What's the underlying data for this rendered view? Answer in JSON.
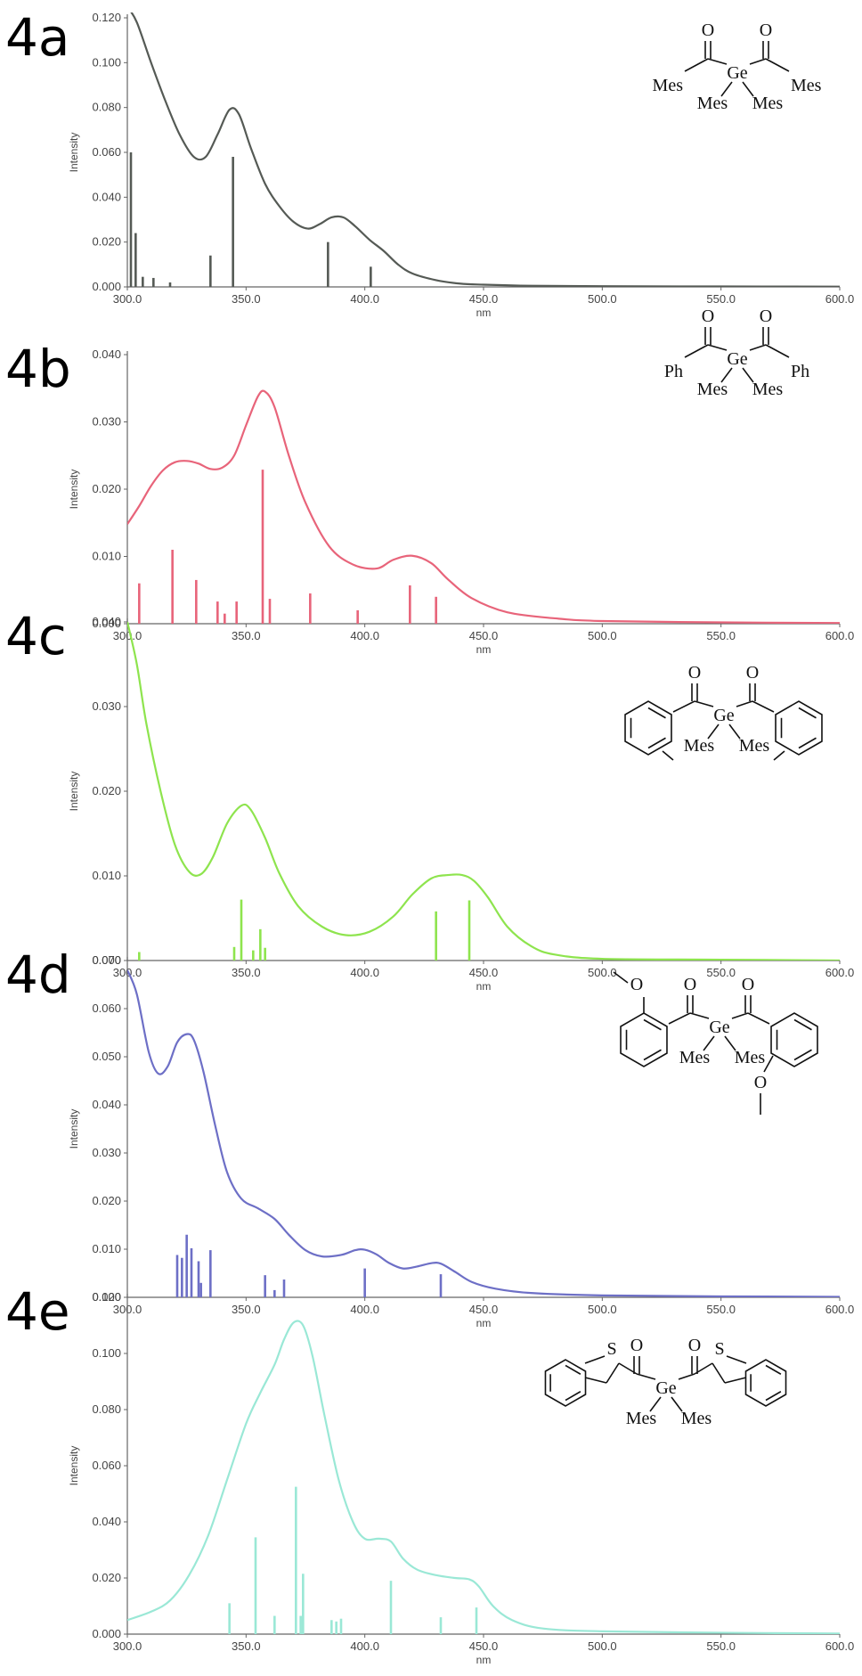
{
  "chart_data": [
    {
      "type": "line",
      "panel_label": "4a",
      "xlabel": "nm",
      "ylabel": "Intensity",
      "xlim": [
        300,
        600
      ],
      "ylim": [
        0,
        0.12
      ],
      "x_ticks": [
        "300.0",
        "350.0",
        "400.0",
        "450.0",
        "500.0",
        "550.0",
        "600.0"
      ],
      "y_ticks": [
        "0.000",
        "0.020",
        "0.040",
        "0.060",
        "0.080",
        "0.100",
        "0.120"
      ],
      "color": "#555a55",
      "series": [
        {
          "x": [
            300,
            304,
            310,
            316,
            322,
            328,
            333,
            338,
            343,
            347,
            352,
            358,
            364,
            370,
            376,
            381,
            386,
            391,
            396,
            402,
            408,
            414,
            420,
            430,
            440,
            450,
            470,
            500,
            550,
            600
          ],
          "y": [
            0.125,
            0.118,
            0.1,
            0.083,
            0.068,
            0.058,
            0.058,
            0.068,
            0.079,
            0.077,
            0.062,
            0.046,
            0.036,
            0.029,
            0.026,
            0.028,
            0.031,
            0.031,
            0.027,
            0.021,
            0.016,
            0.01,
            0.006,
            0.003,
            0.0015,
            0.001,
            0.0005,
            0.0003,
            0.0002,
            0.0001
          ]
        }
      ],
      "sticks": {
        "x": [
          301.5,
          303.5,
          306.5,
          311,
          318,
          335,
          344.5,
          384.5,
          402.5
        ],
        "y": [
          0.06,
          0.024,
          0.0045,
          0.004,
          0.002,
          0.014,
          0.058,
          0.02,
          0.009
        ]
      },
      "structure": {
        "R": [
          "Mes",
          "Mes"
        ],
        "S": [
          "Mes",
          "Mes"
        ],
        "O": "O",
        "Ge": "Ge"
      }
    },
    {
      "type": "line",
      "panel_label": "4b",
      "xlabel": "nm",
      "ylabel": "Intensity",
      "xlim": [
        300,
        600
      ],
      "ylim": [
        0,
        0.04
      ],
      "x_ticks": [
        "300.0",
        "350.0",
        "400.0",
        "450.0",
        "500.0",
        "550.0",
        "600.0"
      ],
      "y_ticks": [
        "0.000",
        "0.010",
        "0.020",
        "0.030",
        "0.040"
      ],
      "color": "#e8647a",
      "series": [
        {
          "x": [
            300,
            305,
            310,
            315,
            320,
            325,
            330,
            335,
            340,
            345,
            350,
            355,
            358,
            362,
            368,
            375,
            385,
            395,
            405,
            412,
            420,
            428,
            435,
            445,
            460,
            480,
            500,
            550,
            600
          ],
          "y": [
            0.0148,
            0.0175,
            0.0205,
            0.0228,
            0.024,
            0.0242,
            0.0238,
            0.023,
            0.0232,
            0.025,
            0.0295,
            0.0338,
            0.0345,
            0.0322,
            0.025,
            0.018,
            0.0115,
            0.0088,
            0.0082,
            0.0095,
            0.0101,
            0.009,
            0.0066,
            0.0038,
            0.0017,
            0.0008,
            0.0004,
            0.0002,
            0.0001
          ]
        }
      ],
      "sticks": {
        "x": [
          305,
          319,
          329,
          338,
          341,
          346,
          357,
          360,
          377,
          397,
          419,
          430
        ],
        "y": [
          0.006,
          0.011,
          0.0065,
          0.0033,
          0.0015,
          0.0033,
          0.0229,
          0.0037,
          0.0045,
          0.002,
          0.0057,
          0.004
        ]
      },
      "structure": {
        "R": [
          "Ph",
          "Ph"
        ],
        "S": [
          "Mes",
          "Mes"
        ],
        "O": "O",
        "Ge": "Ge"
      }
    },
    {
      "type": "line",
      "panel_label": "4c",
      "xlabel": "nm",
      "ylabel": "Intensity",
      "xlim": [
        300,
        600
      ],
      "ylim": [
        0,
        0.04
      ],
      "x_ticks": [
        "300.0",
        "350.0",
        "400.0",
        "450.0",
        "500.0",
        "550.0",
        "600.0"
      ],
      "y_ticks": [
        "0.000",
        "0.010",
        "0.020",
        "0.030",
        "0.040"
      ],
      "color": "#8ee44e",
      "series": [
        {
          "x": [
            300,
            304,
            308,
            314,
            320,
            326,
            331,
            336,
            342,
            348,
            352,
            358,
            364,
            372,
            382,
            392,
            402,
            412,
            420,
            428,
            435,
            441,
            446,
            452,
            460,
            470,
            480,
            500,
            550,
            600
          ],
          "y": [
            0.04,
            0.035,
            0.028,
            0.02,
            0.0137,
            0.0105,
            0.0102,
            0.0122,
            0.0162,
            0.0183,
            0.0178,
            0.0145,
            0.0103,
            0.0064,
            0.004,
            0.003,
            0.0034,
            0.0052,
            0.0078,
            0.0097,
            0.0101,
            0.0101,
            0.0094,
            0.0074,
            0.004,
            0.0017,
            0.0007,
            0.0002,
            0.0001,
            0.0
          ]
        }
      ],
      "sticks": {
        "x": [
          305,
          345,
          348,
          353,
          356,
          358,
          430,
          444
        ],
        "y": [
          0.001,
          0.0016,
          0.0072,
          0.0012,
          0.0037,
          0.0015,
          0.0058,
          0.0071
        ]
      },
      "structure": {
        "R": [
          "",
          ""
        ],
        "S": [
          "Mes",
          "Mes"
        ],
        "O": "O",
        "Ge": "Ge"
      }
    },
    {
      "type": "line",
      "panel_label": "4d",
      "xlabel": "nm",
      "ylabel": "Intensity",
      "xlim": [
        300,
        600
      ],
      "ylim": [
        0,
        0.07
      ],
      "x_ticks": [
        "300.0",
        "350.0",
        "400.0",
        "450.0",
        "500.0",
        "550.0",
        "600.0"
      ],
      "y_ticks": [
        "0.000",
        "0.010",
        "0.020",
        "0.030",
        "0.040",
        "0.050",
        "0.060",
        "0.070"
      ],
      "color": "#6d6fc6",
      "series": [
        {
          "x": [
            300,
            304,
            309,
            313,
            317,
            321,
            325,
            328,
            332,
            337,
            342,
            348,
            355,
            362,
            368,
            375,
            382,
            390,
            396,
            400,
            405,
            410,
            416,
            422,
            428,
            432,
            438,
            445,
            455,
            470,
            500,
            550,
            600
          ],
          "y": [
            0.068,
            0.063,
            0.051,
            0.0465,
            0.048,
            0.053,
            0.0547,
            0.0535,
            0.047,
            0.0357,
            0.026,
            0.0205,
            0.0185,
            0.0163,
            0.013,
            0.0098,
            0.0085,
            0.0088,
            0.0098,
            0.0099,
            0.0089,
            0.0072,
            0.006,
            0.0064,
            0.0071,
            0.007,
            0.0053,
            0.0032,
            0.0018,
            0.0009,
            0.0004,
            0.0002,
            0.0001
          ]
        }
      ],
      "sticks": {
        "x": [
          321,
          323,
          325,
          327,
          330,
          331,
          335,
          358,
          362,
          366,
          400,
          432
        ],
        "y": [
          0.0088,
          0.0082,
          0.013,
          0.0102,
          0.0075,
          0.003,
          0.0098,
          0.0046,
          0.0015,
          0.0037,
          0.006,
          0.0048
        ]
      },
      "structure": {
        "R": [
          "",
          ""
        ],
        "S": [
          "Mes",
          "Mes"
        ],
        "O": "O",
        "Ge": "Ge"
      }
    },
    {
      "type": "line",
      "panel_label": "4e",
      "xlabel": "nm",
      "ylabel": "Intensity",
      "xlim": [
        300,
        600
      ],
      "ylim": [
        0,
        0.12
      ],
      "x_ticks": [
        "300.0",
        "350.0",
        "400.0",
        "450.0",
        "500.0",
        "550.0",
        "600.0"
      ],
      "y_ticks": [
        "0.000",
        "0.020",
        "0.040",
        "0.060",
        "0.080",
        "0.100",
        "0.120"
      ],
      "color": "#9ae8d6",
      "series": [
        {
          "x": [
            300,
            310,
            318,
            326,
            334,
            342,
            350,
            356,
            362,
            366,
            370,
            374,
            378,
            383,
            389,
            395,
            400,
            406,
            411,
            416,
            422,
            430,
            438,
            444,
            448,
            454,
            462,
            475,
            500,
            550,
            600
          ],
          "y": [
            0.005,
            0.008,
            0.012,
            0.021,
            0.035,
            0.055,
            0.075,
            0.086,
            0.096,
            0.105,
            0.111,
            0.11,
            0.099,
            0.078,
            0.055,
            0.04,
            0.034,
            0.034,
            0.033,
            0.027,
            0.023,
            0.021,
            0.02,
            0.0195,
            0.017,
            0.01,
            0.005,
            0.002,
            0.001,
            0.0005,
            0.0002
          ]
        }
      ],
      "sticks": {
        "x": [
          343,
          354,
          362,
          371,
          373,
          374,
          386,
          388,
          390,
          411,
          432,
          447
        ],
        "y": [
          0.011,
          0.0345,
          0.0065,
          0.0525,
          0.0065,
          0.0215,
          0.005,
          0.0045,
          0.0055,
          0.019,
          0.006,
          0.0095
        ]
      },
      "structure": {
        "R": [
          "S",
          "S"
        ],
        "S": [
          "Mes",
          "Mes"
        ],
        "O": "O",
        "Ge": "Ge"
      }
    }
  ]
}
